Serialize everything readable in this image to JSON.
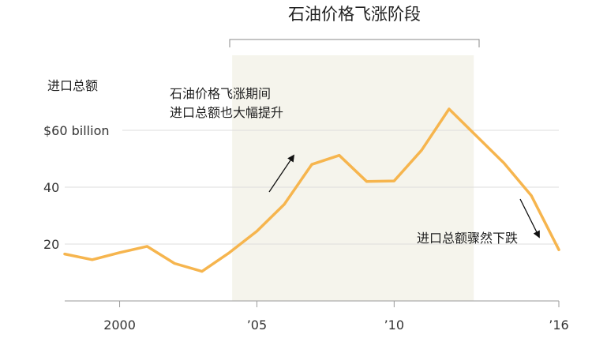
{
  "chart_data": {
    "type": "line",
    "ylabel": "进口总额",
    "y_unit_label": "$60 billion",
    "ylim": [
      0,
      70
    ],
    "xlim": [
      1998,
      2016
    ],
    "y_ticks": [
      {
        "value": 20,
        "label": "20"
      },
      {
        "value": 40,
        "label": "40"
      },
      {
        "value": 60,
        "label": "$60 billion"
      }
    ],
    "x_ticks": [
      {
        "value": 2000,
        "label": "2000"
      },
      {
        "value": 2005,
        "label": "’05"
      },
      {
        "value": 2010,
        "label": "’10"
      },
      {
        "value": 2016,
        "label": "’16"
      }
    ],
    "highlight_period": {
      "start": 2004.1,
      "end": 2012.9,
      "label": "石油价格飞涨阶段"
    },
    "series": [
      {
        "color": "#f6b54e",
        "x": [
          1998,
          1999,
          2000,
          2001,
          2002,
          2003,
          2004,
          2005,
          2006,
          2007,
          2008,
          2009,
          2010,
          2011,
          2012,
          2013,
          2014,
          2015,
          2016
        ],
        "y": [
          16.5,
          14.5,
          17,
          19.2,
          13.2,
          10.4,
          17,
          24.5,
          34,
          48,
          51.2,
          42,
          42.2,
          53,
          67.5,
          58,
          48.5,
          37,
          18
        ]
      }
    ],
    "annotations": [
      {
        "lines": [
          "石油价格飞涨期间",
          "进口总额也大幅提升"
        ]
      },
      {
        "lines": [
          "进口总额骤然下跌"
        ]
      }
    ],
    "grid": true,
    "legend": "none"
  }
}
